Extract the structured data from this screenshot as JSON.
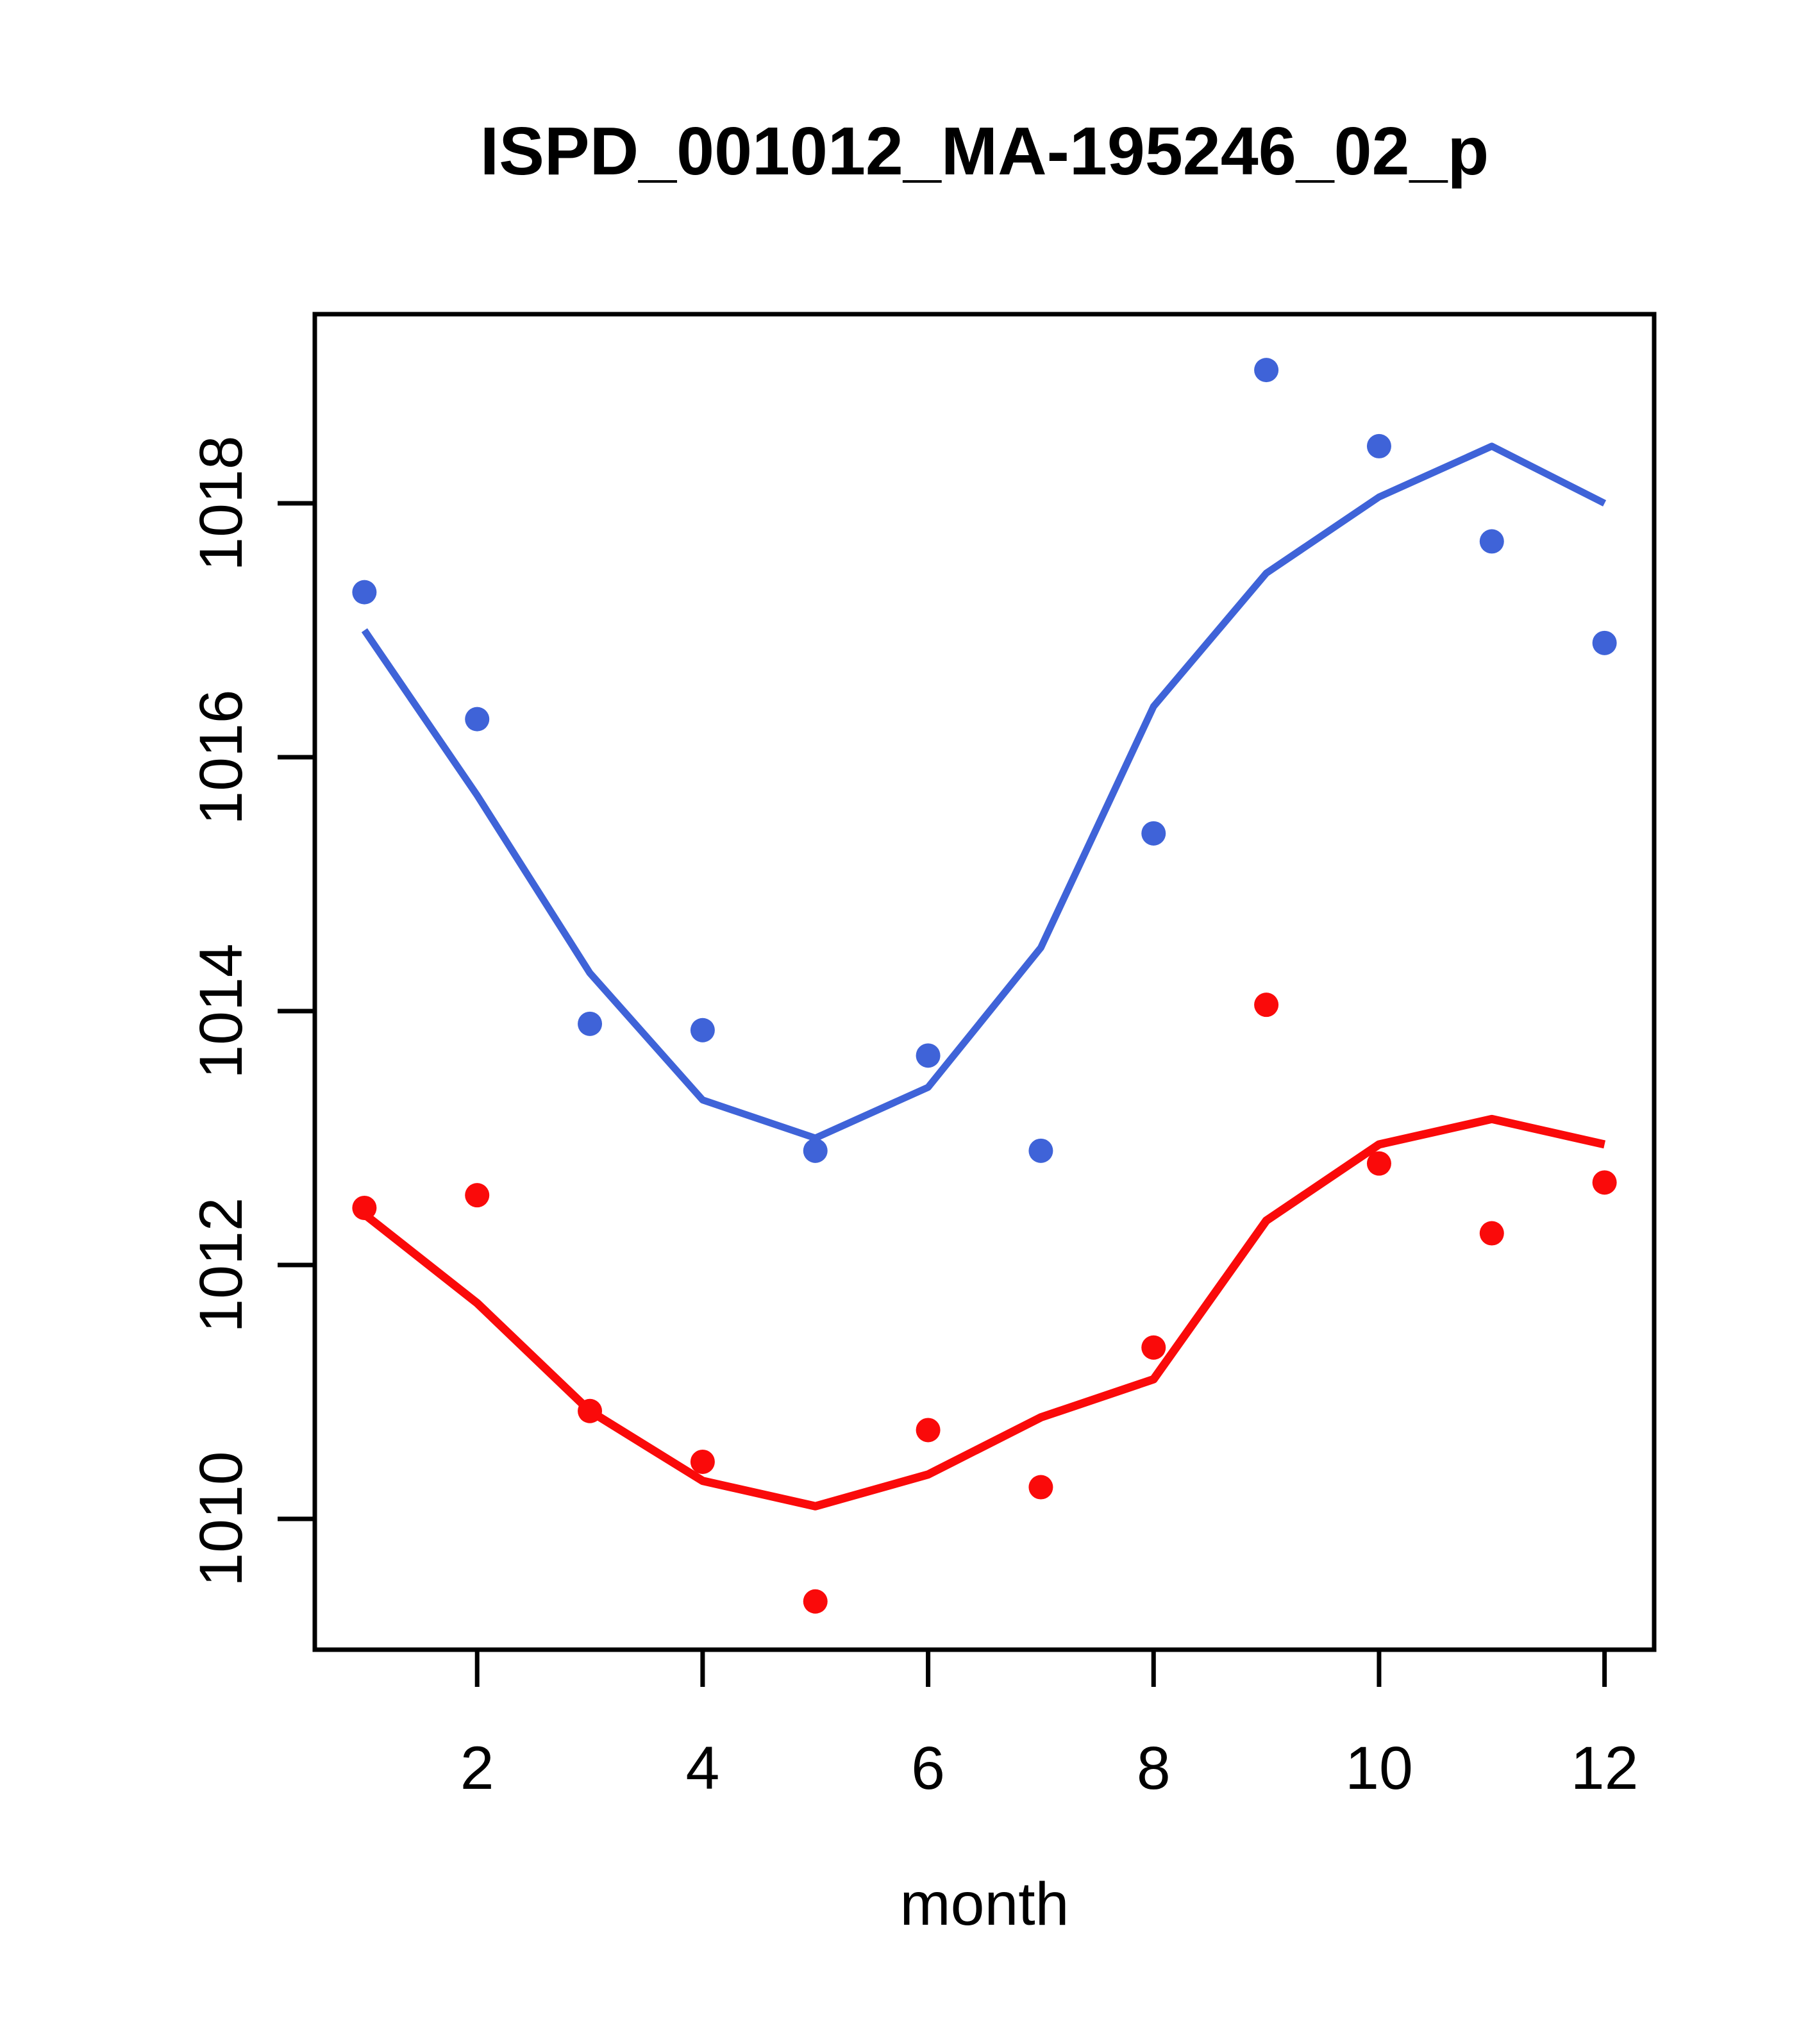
{
  "header": {
    "title": "ISPD_001012_MA-195246_02_p"
  },
  "chart_data": {
    "type": "scatter",
    "title": "ISPD_001012_MA-195246_02_p",
    "xlabel": "month",
    "ylabel": "",
    "x": [
      1,
      2,
      3,
      4,
      5,
      6,
      7,
      8,
      9,
      10,
      11,
      12
    ],
    "xticks": [
      2,
      4,
      6,
      8,
      10,
      12
    ],
    "yticks": [
      1010,
      1012,
      1014,
      1016,
      1018
    ],
    "xlim": [
      0.56,
      12.44
    ],
    "ylim": [
      1008.97,
      1019.49
    ],
    "grid": false,
    "legend_position": "none",
    "colors": {
      "series1": "#3F63D8",
      "series2": "#FA0A0A",
      "axis": "#000000"
    },
    "series": [
      {
        "name": "series-1-points",
        "style": "points",
        "color": "#3F63D8",
        "values": [
          1017.3,
          1016.3,
          1013.9,
          1013.85,
          1012.9,
          1013.65,
          1012.9,
          1015.4,
          1019.05,
          1018.45,
          1017.7,
          1016.9
        ]
      },
      {
        "name": "series-1-line",
        "style": "line",
        "color": "#3F63D8",
        "values": [
          1017.0,
          1015.7,
          1014.3,
          1013.3,
          1013.0,
          1013.4,
          1014.5,
          1016.4,
          1017.45,
          1018.05,
          1018.45,
          1018.0
        ]
      },
      {
        "name": "series-2-points",
        "style": "points",
        "color": "#FA0A0A",
        "values": [
          1012.45,
          1012.55,
          1010.85,
          1010.45,
          1009.35,
          1010.7,
          1010.25,
          1011.35,
          1014.05,
          1012.8,
          1012.25,
          1012.65
        ]
      },
      {
        "name": "series-2-line",
        "style": "line",
        "color": "#FA0A0A",
        "values": [
          1012.4,
          1011.7,
          1010.85,
          1010.3,
          1010.1,
          1010.35,
          1010.8,
          1011.1,
          1012.35,
          1012.95,
          1013.15,
          1012.95
        ]
      }
    ]
  }
}
